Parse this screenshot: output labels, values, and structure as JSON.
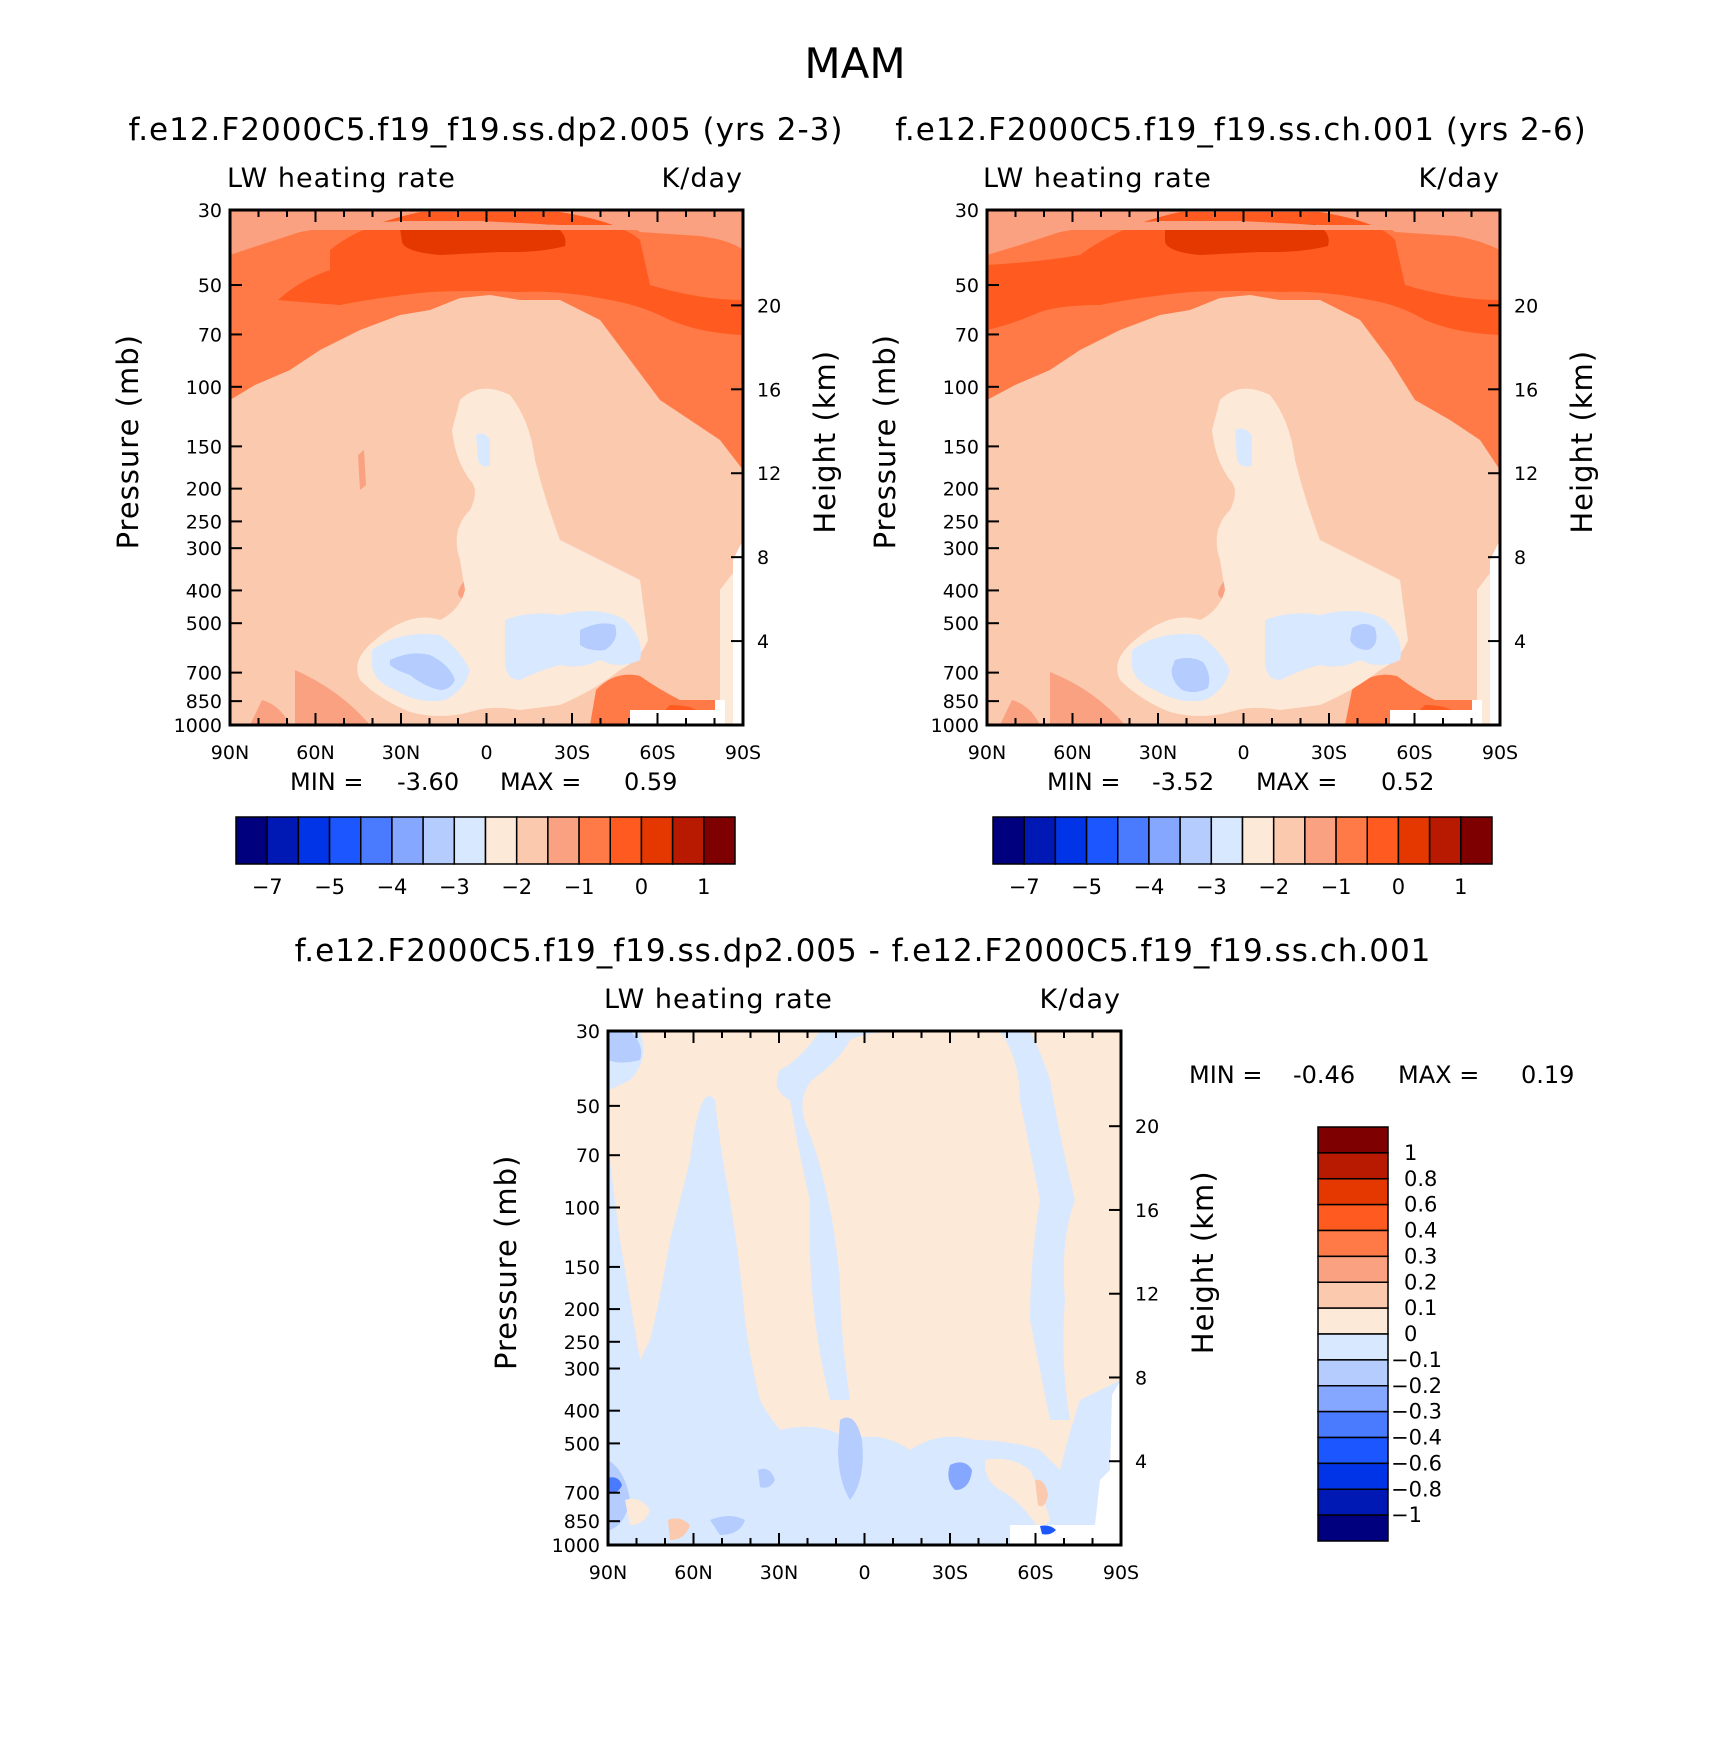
{
  "title": "MAM",
  "lat_ticks": [
    "90N",
    "60N",
    "30N",
    "0",
    "30S",
    "60S",
    "90S"
  ],
  "p_ticks": [
    "30",
    "50",
    "70",
    "100",
    "150",
    "200",
    "250",
    "300",
    "400",
    "500",
    "700",
    "850",
    "1000"
  ],
  "h_ticks": [
    "20",
    "16",
    "12",
    "8",
    "4"
  ],
  "colors": {
    "full": [
      "#00007f",
      "#0018b4",
      "#0034e6",
      "#1b56ff",
      "#4a7bff",
      "#86a7ff",
      "#b5ccff",
      "#d8e8ff",
      "#fde9d8",
      "#fbc9ae",
      "#f9a180",
      "#ff7a47",
      "#ff5a1f",
      "#e53800",
      "#b71a00",
      "#7f0000"
    ],
    "diff": [
      "#00007f",
      "#0018b4",
      "#0034e6",
      "#1b56ff",
      "#4a7bff",
      "#86a7ff",
      "#b5ccff",
      "#d8e8ff",
      "#fde9d8",
      "#fbc9ae",
      "#f9a180",
      "#ff7a47",
      "#ff5a1f",
      "#e53800",
      "#b71a00",
      "#7f0000"
    ]
  },
  "chart_data": [
    {
      "type": "heatmap",
      "title": "f.e12.F2000C5.f19_f19.ss.dp2.005 (yrs 2-3)",
      "left_label": "LW heating rate",
      "right_label": "K/day",
      "xlabel": "",
      "ylabel": "Pressure (mb)",
      "ylabel2": "Height (km)",
      "min_text": "MIN =",
      "min_value": "-3.60",
      "max_text": "MAX =",
      "max_value": "0.59",
      "colorbar_labels": [
        "-7",
        "-5",
        "-4",
        "-3",
        "-2",
        "-1",
        "0",
        "1"
      ]
    },
    {
      "type": "heatmap",
      "title": "f.e12.F2000C5.f19_f19.ss.ch.001 (yrs 2-6)",
      "left_label": "LW heating rate",
      "right_label": "K/day",
      "xlabel": "",
      "ylabel": "Pressure (mb)",
      "ylabel2": "Height (km)",
      "min_text": "MIN =",
      "min_value": "-3.52",
      "max_text": "MAX =",
      "max_value": "0.52",
      "colorbar_labels": [
        "-7",
        "-5",
        "-4",
        "-3",
        "-2",
        "-1",
        "0",
        "1"
      ]
    },
    {
      "type": "heatmap",
      "title": "f.e12.F2000C5.f19_f19.ss.dp2.005 - f.e12.F2000C5.f19_f19.ss.ch.001",
      "left_label": "LW heating rate",
      "right_label": "K/day",
      "xlabel": "",
      "ylabel": "Pressure (mb)",
      "ylabel2": "Height (km)",
      "min_text": "MIN =",
      "min_value": "-0.46",
      "max_text": "MAX =",
      "max_value": "0.19",
      "colorbar_labels": [
        "1",
        "0.8",
        "0.6",
        "0.4",
        "0.3",
        "0.2",
        "0.1",
        "0",
        "-0.1",
        "-0.2",
        "-0.3",
        "-0.4",
        "-0.6",
        "-0.8",
        "-1"
      ]
    }
  ]
}
